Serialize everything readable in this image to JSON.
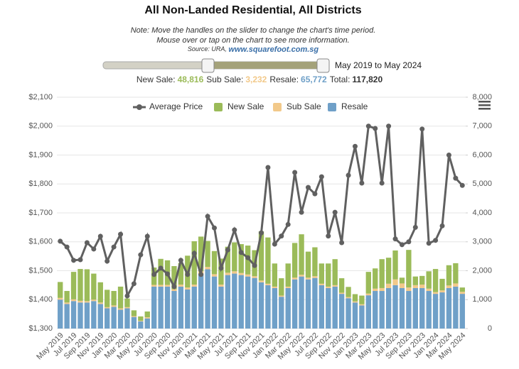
{
  "chart_data": {
    "type": "stacked-bar-line",
    "title": "All Non-Landed Residential, All Districts",
    "note": "Note: Move the handles on the slider to change the chart's time period.",
    "note2": "Mouse over or tap on the chart to see more information.",
    "source": "Source: URA,",
    "source_link": "www.squarefoot.com.sg",
    "range_label": "May 2019 to May 2024",
    "summary": [
      {
        "label": "New Sale:",
        "value": {
          "value": 48816,
          "label": "48,816"
        },
        "color": "#9bbb59"
      },
      {
        "label": "Sub Sale:",
        "value": {
          "value": 3232,
          "label": "3,232"
        },
        "color": "#f2c98a"
      },
      {
        "label": "Resale:",
        "value": {
          "value": 65772,
          "label": "65,772"
        },
        "color": "#6fa0c8"
      },
      {
        "label": "Total:",
        "value": {
          "value": 117820,
          "label": "117,820"
        },
        "color": "#333333"
      }
    ],
    "categories": [
      "May 2019",
      null,
      "Jul 2019",
      null,
      "Sep 2019",
      null,
      "Nov 2019",
      null,
      "Jan 2020",
      null,
      "Mar 2020",
      null,
      "May 2020",
      null,
      "Jul 2020",
      null,
      "Sep 2020",
      null,
      "Nov 2020",
      null,
      "Jan 2021",
      null,
      "Mar 2021",
      null,
      "May 2021",
      null,
      "Jul 2021",
      null,
      "Sep 2021",
      null,
      "Nov 2021",
      null,
      "Jan 2022",
      null,
      "Mar 2022",
      null,
      "May 2022",
      null,
      "Jul 2022",
      null,
      "Sep 2022",
      null,
      "Nov 2022",
      null,
      "Jan 2023",
      null,
      "Mar 2023",
      null,
      "May 2023",
      null,
      "Jul 2023",
      null,
      "Sep 2023",
      null,
      "Nov 2023",
      null,
      "Jan 2024",
      null,
      "Mar 2024",
      null,
      "May 2024"
    ],
    "series": [
      {
        "name": "Average Price",
        "kind": "line",
        "axis": "y",
        "color": "#606060",
        "values": [
          1602,
          1582,
          1536,
          1538,
          1597,
          1575,
          1619,
          1533,
          1582,
          1626,
          1413,
          1455,
          1555,
          1619,
          1487,
          1509,
          1489,
          1445,
          1536,
          1487,
          1560,
          1487,
          1688,
          1648,
          1509,
          1572,
          1641,
          1563,
          1545,
          1518,
          1631,
          1857,
          1592,
          1620,
          1660,
          1840,
          1702,
          1788,
          1766,
          1825,
          1620,
          1702,
          1597,
          1830,
          1930,
          1803,
          2000,
          1992,
          1803,
          2000,
          1610,
          1590,
          1600,
          1650,
          1990,
          1595,
          1605,
          1655,
          1900,
          1820,
          1795
        ]
      },
      {
        "name": "New Sale",
        "kind": "bar",
        "axis": "y2",
        "color": "#9bbb59",
        "values": [
          550,
          400,
          950,
          1100,
          1100,
          900,
          700,
          600,
          500,
          750,
          300,
          200,
          150,
          200,
          600,
          900,
          850,
          800,
          750,
          1100,
          1500,
          1200,
          900,
          800,
          900,
          900,
          1000,
          1000,
          1000,
          900,
          1700,
          1600,
          800,
          600,
          800,
          1200,
          1400,
          900,
          1000,
          700,
          800,
          900,
          500,
          350,
          250,
          300,
          750,
          700,
          1000,
          900,
          1000,
          200,
          1300,
          300,
          300,
          600,
          800,
          400,
          700,
          700,
          150
        ]
      },
      {
        "name": "Sub Sale",
        "kind": "bar",
        "axis": "y2",
        "color": "#f2c98a",
        "values": [
          60,
          50,
          60,
          60,
          50,
          50,
          50,
          40,
          50,
          50,
          40,
          30,
          20,
          40,
          60,
          60,
          60,
          60,
          70,
          70,
          70,
          80,
          80,
          80,
          70,
          80,
          80,
          70,
          70,
          60,
          60,
          50,
          50,
          40,
          50,
          60,
          60,
          60,
          60,
          50,
          50,
          50,
          40,
          40,
          40,
          40,
          60,
          80,
          100,
          150,
          200,
          160,
          120,
          100,
          120,
          80,
          60,
          70,
          90,
          110,
          70
        ]
      },
      {
        "name": "Resale",
        "kind": "bar",
        "axis": "y2",
        "color": "#6fa0c8",
        "values": [
          1000,
          850,
          950,
          900,
          900,
          950,
          850,
          700,
          750,
          650,
          700,
          400,
          250,
          350,
          1450,
          1450,
          1450,
          1300,
          1450,
          1350,
          1450,
          1900,
          2050,
          1800,
          1450,
          1850,
          1900,
          1850,
          1800,
          1750,
          1600,
          1500,
          1400,
          1100,
          1400,
          1700,
          1800,
          1700,
          1750,
          1500,
          1400,
          1450,
          1200,
          1050,
          900,
          800,
          1150,
          1300,
          1300,
          1400,
          1500,
          1400,
          1300,
          1400,
          1400,
          1300,
          1200,
          1250,
          1400,
          1450,
          1200
        ]
      }
    ],
    "stack_order": [
      "Resale",
      "Sub Sale",
      "New Sale"
    ],
    "ylim": [
      1300,
      2100
    ],
    "yticks": [
      {
        "value": 1300,
        "label": "$1,300"
      },
      {
        "value": 1400,
        "label": "$1,400"
      },
      {
        "value": 1500,
        "label": "$1,500"
      },
      {
        "value": 1600,
        "label": "$1,600"
      },
      {
        "value": 1700,
        "label": "$1,700"
      },
      {
        "value": 1800,
        "label": "$1,800"
      },
      {
        "value": 1900,
        "label": "$1,900"
      },
      {
        "value": 2000,
        "label": "$2,000"
      },
      {
        "value": 2100,
        "label": "$2,100"
      }
    ],
    "y2lim": [
      0,
      8000
    ],
    "y2ticks": [
      0,
      {
        "value": 1000,
        "label": "1,000"
      },
      {
        "value": 2000,
        "label": "2,000"
      },
      {
        "value": 3000,
        "label": "3,000"
      },
      {
        "value": 4000,
        "label": "4,000"
      },
      {
        "value": 5000,
        "label": "5,000"
      },
      {
        "value": 6000,
        "label": "6,000"
      },
      {
        "value": 7000,
        "label": "7,000"
      },
      {
        "value": 8000,
        "label": "8,000"
      }
    ],
    "grid": true,
    "legend": "top"
  }
}
